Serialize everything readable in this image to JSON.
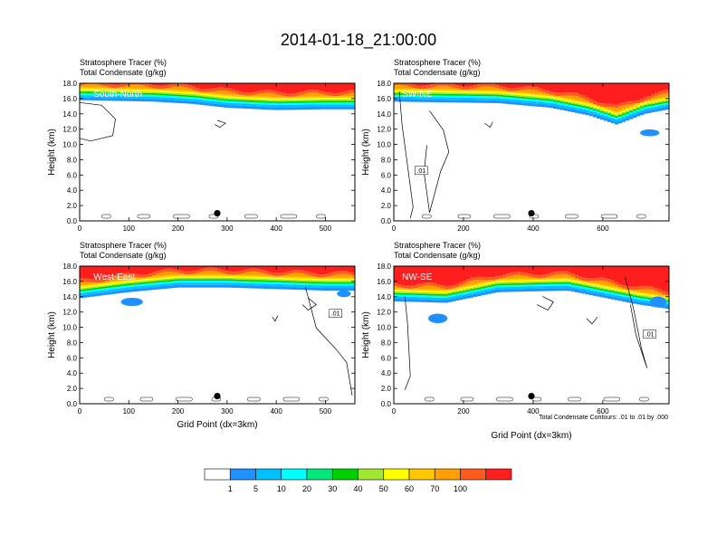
{
  "figure": {
    "title": "2014-01-18_21:00:00",
    "xlabel": "Grid Point (dx=3km)",
    "contour_note": "Total Condensate Contours: .01 to .01 by .000"
  },
  "colorbar": {
    "colors": [
      "#ffffff",
      "#1e90ff",
      "#00bfff",
      "#00ffff",
      "#00e87a",
      "#00d000",
      "#a0e632",
      "#ffff00",
      "#ffc800",
      "#ffa000",
      "#ff5a1e",
      "#ff1e1e"
    ],
    "labels": [
      "1",
      "5",
      "10",
      "20",
      "30",
      "40",
      "50",
      "60",
      "70",
      "100"
    ]
  },
  "chart_data": [
    {
      "type": "heatmap",
      "panel": "South-North",
      "title": "Stratosphere Tracer   (%)",
      "subtitle": "Total Condensate   (g/kg)",
      "ylabel": "Height (km)",
      "xlim": [
        0,
        560
      ],
      "ylim": [
        0,
        18
      ],
      "xticks": [
        0,
        100,
        200,
        300,
        400,
        500
      ],
      "yticks": [
        0,
        2,
        4,
        6,
        8,
        10,
        12,
        14,
        16,
        18
      ],
      "ytick_labels": [
        "0.0",
        "2.0",
        "4.0",
        "6.0",
        "8.0",
        "10.0",
        "12.0",
        "14.0",
        "16.0",
        "18.0"
      ],
      "marker": [
        280,
        1.0
      ],
      "tracer_top_km": [
        [
          0,
          15.8
        ],
        [
          150,
          15.6
        ],
        [
          230,
          15.3
        ],
        [
          300,
          14.8
        ],
        [
          400,
          14.5
        ],
        [
          500,
          14.6
        ],
        [
          560,
          14.6
        ]
      ],
      "contour_labels": []
    },
    {
      "type": "heatmap",
      "panel": "SW-NE",
      "title": "Stratosphere Tracer   (%)",
      "subtitle": "Total Condensate   (g/kg)",
      "ylabel": "Height (km)",
      "xlim": [
        0,
        790
      ],
      "ylim": [
        0,
        18
      ],
      "xticks": [
        0,
        200,
        400,
        600
      ],
      "yticks": [
        0,
        2,
        4,
        6,
        8,
        10,
        12,
        14,
        16,
        18
      ],
      "ytick_labels": [
        "0.0",
        "2.0",
        "4.0",
        "6.0",
        "8.0",
        "10.0",
        "12.0",
        "14.0",
        "16.0",
        "18.0"
      ],
      "marker": [
        395,
        1.0
      ],
      "tracer_top_km": [
        [
          0,
          15.6
        ],
        [
          300,
          15.4
        ],
        [
          450,
          14.8
        ],
        [
          560,
          13.8
        ],
        [
          640,
          12.6
        ],
        [
          720,
          14.0
        ],
        [
          790,
          14.6
        ]
      ],
      "contour_labels": [
        ".01"
      ]
    },
    {
      "type": "heatmap",
      "panel": "West-East",
      "title": "Stratosphere Tracer   (%)",
      "subtitle": "Total Condensate   (g/kg)",
      "ylabel": "Height (km)",
      "xlim": [
        0,
        560
      ],
      "ylim": [
        0,
        18
      ],
      "xticks": [
        0,
        100,
        200,
        300,
        400,
        500
      ],
      "yticks": [
        0,
        2,
        4,
        6,
        8,
        10,
        12,
        14,
        16,
        18
      ],
      "ytick_labels": [
        "0.0",
        "2.0",
        "4.0",
        "6.0",
        "8.0",
        "10.0",
        "12.0",
        "14.0",
        "16.0",
        "18.0"
      ],
      "marker": [
        280,
        1.0
      ],
      "tracer_top_km": [
        [
          0,
          13.8
        ],
        [
          100,
          14.6
        ],
        [
          200,
          15.2
        ],
        [
          300,
          15.2
        ],
        [
          400,
          15.0
        ],
        [
          500,
          14.8
        ],
        [
          560,
          14.8
        ]
      ],
      "contour_labels": [
        ".01"
      ]
    },
    {
      "type": "heatmap",
      "panel": "NW-SE",
      "title": "Stratosphere Tracer   (%)",
      "subtitle": "Total Condensate   (g/kg)",
      "ylabel": "Height (km)",
      "xlim": [
        0,
        790
      ],
      "ylim": [
        0,
        18
      ],
      "xticks": [
        0,
        200,
        400,
        600
      ],
      "yticks": [
        0,
        2,
        4,
        6,
        8,
        10,
        12,
        14,
        16,
        18
      ],
      "ytick_labels": [
        "0.0",
        "2.0",
        "4.0",
        "6.0",
        "8.0",
        "10.0",
        "12.0",
        "14.0",
        "16.0",
        "18.0"
      ],
      "marker": [
        395,
        1.0
      ],
      "tracer_top_km": [
        [
          0,
          13.4
        ],
        [
          150,
          13.2
        ],
        [
          300,
          14.6
        ],
        [
          500,
          14.8
        ],
        [
          700,
          13.0
        ],
        [
          790,
          12.4
        ]
      ],
      "contour_labels": [
        ".01"
      ]
    }
  ]
}
